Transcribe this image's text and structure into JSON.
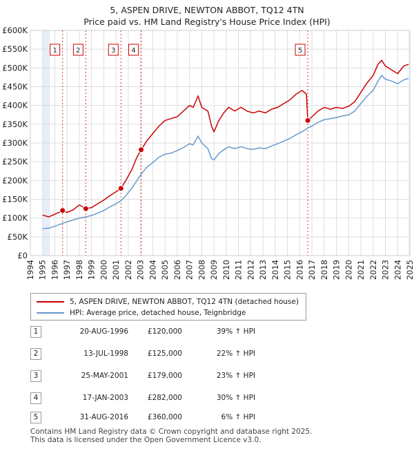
{
  "title_line1": "5, ASPEN DRIVE, NEWTON ABBOT, TQ12 4TN",
  "title_line2": "Price paid vs. HM Land Registry's House Price Index (HPI)",
  "legend": {
    "property": "5, ASPEN DRIVE, NEWTON ABBOT, TQ12 4TN (detached house)",
    "hpi": "HPI: Average price, detached house, Teignbridge"
  },
  "colors": {
    "property": "#cc0000",
    "hpi": "#6699cc",
    "band": "#e8eef8",
    "grid": "#dddddd",
    "sale_marker": "#cc0000"
  },
  "sales": [
    {
      "num": "1",
      "date": "20-AUG-1996",
      "price": "£120,000",
      "hpi": "39% ↑ HPI"
    },
    {
      "num": "2",
      "date": "13-JUL-1998",
      "price": "£125,000",
      "hpi": "22% ↑ HPI"
    },
    {
      "num": "3",
      "date": "25-MAY-2001",
      "price": "£179,000",
      "hpi": "23% ↑ HPI"
    },
    {
      "num": "4",
      "date": "17-JAN-2003",
      "price": "£282,000",
      "hpi": "30% ↑ HPI"
    },
    {
      "num": "5",
      "date": "31-AUG-2016",
      "price": "£360,000",
      "hpi": "6% ↑ HPI"
    }
  ],
  "footer": {
    "line1": "Contains HM Land Registry data © Crown copyright and database right 2025.",
    "line2": "This data is licensed under the Open Government Licence v3.0."
  },
  "chart_data": {
    "type": "line",
    "xlim": [
      1994,
      2025
    ],
    "ylim": [
      0,
      600000
    ],
    "x_ticks": [
      1994,
      1995,
      1996,
      1997,
      1998,
      1999,
      2000,
      2001,
      2002,
      2003,
      2004,
      2005,
      2006,
      2007,
      2008,
      2009,
      2010,
      2011,
      2012,
      2013,
      2014,
      2015,
      2016,
      2017,
      2018,
      2019,
      2020,
      2021,
      2022,
      2023,
      2024,
      2025
    ],
    "y_ticks": [
      {
        "value": 0,
        "label": "£0"
      },
      {
        "value": 50000,
        "label": "£50K"
      },
      {
        "value": 100000,
        "label": "£100K"
      },
      {
        "value": 150000,
        "label": "£150K"
      },
      {
        "value": 200000,
        "label": "£200K"
      },
      {
        "value": 250000,
        "label": "£250K"
      },
      {
        "value": 300000,
        "label": "£300K"
      },
      {
        "value": 350000,
        "label": "£350K"
      },
      {
        "value": 400000,
        "label": "£400K"
      },
      {
        "value": 450000,
        "label": "£450K"
      },
      {
        "value": 500000,
        "label": "£500K"
      },
      {
        "value": 550000,
        "label": "£550K"
      },
      {
        "value": 600000,
        "label": "£600K"
      }
    ],
    "grid": true,
    "shaded_ranges": [
      [
        1995.0,
        1995.6
      ],
      [
        2024.9,
        2025.0
      ]
    ],
    "sale_points": [
      {
        "num": "1",
        "x": 1996.63,
        "y": 120000
      },
      {
        "num": "2",
        "x": 1998.53,
        "y": 125000
      },
      {
        "num": "3",
        "x": 2001.4,
        "y": 179000
      },
      {
        "num": "4",
        "x": 2003.05,
        "y": 282000
      },
      {
        "num": "5",
        "x": 2016.66,
        "y": 360000
      }
    ],
    "series": [
      {
        "name": "5, ASPEN DRIVE, NEWTON ABBOT, TQ12 4TN (detached house)",
        "points": [
          [
            1995.0,
            108000
          ],
          [
            1995.5,
            103000
          ],
          [
            1996.0,
            110000
          ],
          [
            1996.63,
            120000
          ],
          [
            1997.0,
            115000
          ],
          [
            1997.5,
            122000
          ],
          [
            1998.0,
            135000
          ],
          [
            1998.53,
            125000
          ],
          [
            1999.0,
            128000
          ],
          [
            1999.5,
            138000
          ],
          [
            2000.0,
            148000
          ],
          [
            2000.5,
            160000
          ],
          [
            2001.0,
            170000
          ],
          [
            2001.4,
            179000
          ],
          [
            2001.8,
            200000
          ],
          [
            2002.3,
            230000
          ],
          [
            2002.7,
            262000
          ],
          [
            2003.05,
            282000
          ],
          [
            2003.5,
            305000
          ],
          [
            2004.0,
            325000
          ],
          [
            2004.5,
            345000
          ],
          [
            2005.0,
            360000
          ],
          [
            2005.5,
            365000
          ],
          [
            2006.0,
            370000
          ],
          [
            2006.5,
            385000
          ],
          [
            2007.0,
            400000
          ],
          [
            2007.3,
            395000
          ],
          [
            2007.7,
            425000
          ],
          [
            2008.0,
            395000
          ],
          [
            2008.5,
            385000
          ],
          [
            2008.8,
            345000
          ],
          [
            2009.0,
            330000
          ],
          [
            2009.4,
            360000
          ],
          [
            2009.8,
            380000
          ],
          [
            2010.2,
            395000
          ],
          [
            2010.7,
            385000
          ],
          [
            2011.2,
            395000
          ],
          [
            2011.7,
            385000
          ],
          [
            2012.2,
            380000
          ],
          [
            2012.7,
            385000
          ],
          [
            2013.2,
            380000
          ],
          [
            2013.7,
            390000
          ],
          [
            2014.2,
            395000
          ],
          [
            2014.7,
            405000
          ],
          [
            2015.2,
            415000
          ],
          [
            2015.7,
            430000
          ],
          [
            2016.2,
            440000
          ],
          [
            2016.55,
            430000
          ],
          [
            2016.66,
            360000
          ],
          [
            2017.0,
            370000
          ],
          [
            2017.5,
            385000
          ],
          [
            2018.0,
            395000
          ],
          [
            2018.5,
            390000
          ],
          [
            2019.0,
            395000
          ],
          [
            2019.5,
            392000
          ],
          [
            2020.0,
            398000
          ],
          [
            2020.5,
            410000
          ],
          [
            2021.0,
            435000
          ],
          [
            2021.5,
            460000
          ],
          [
            2022.0,
            480000
          ],
          [
            2022.4,
            510000
          ],
          [
            2022.7,
            520000
          ],
          [
            2023.0,
            505000
          ],
          [
            2023.5,
            495000
          ],
          [
            2024.0,
            485000
          ],
          [
            2024.5,
            505000
          ],
          [
            2024.9,
            510000
          ]
        ]
      },
      {
        "name": "HPI: Average price, detached house, Teignbridge",
        "points": [
          [
            1995.0,
            72000
          ],
          [
            1995.5,
            73000
          ],
          [
            1996.0,
            78000
          ],
          [
            1996.63,
            86000
          ],
          [
            1997.0,
            90000
          ],
          [
            1997.5,
            95000
          ],
          [
            1998.0,
            100000
          ],
          [
            1998.53,
            103000
          ],
          [
            1999.0,
            107000
          ],
          [
            1999.5,
            113000
          ],
          [
            2000.0,
            120000
          ],
          [
            2000.5,
            130000
          ],
          [
            2001.0,
            138000
          ],
          [
            2001.4,
            146000
          ],
          [
            2001.8,
            160000
          ],
          [
            2002.3,
            180000
          ],
          [
            2002.7,
            200000
          ],
          [
            2003.05,
            217000
          ],
          [
            2003.5,
            235000
          ],
          [
            2004.0,
            248000
          ],
          [
            2004.5,
            262000
          ],
          [
            2005.0,
            270000
          ],
          [
            2005.5,
            273000
          ],
          [
            2006.0,
            280000
          ],
          [
            2006.5,
            288000
          ],
          [
            2007.0,
            298000
          ],
          [
            2007.3,
            295000
          ],
          [
            2007.7,
            318000
          ],
          [
            2008.0,
            300000
          ],
          [
            2008.5,
            285000
          ],
          [
            2008.8,
            258000
          ],
          [
            2009.0,
            255000
          ],
          [
            2009.4,
            272000
          ],
          [
            2009.8,
            282000
          ],
          [
            2010.2,
            290000
          ],
          [
            2010.7,
            285000
          ],
          [
            2011.2,
            290000
          ],
          [
            2011.7,
            285000
          ],
          [
            2012.2,
            283000
          ],
          [
            2012.7,
            287000
          ],
          [
            2013.2,
            285000
          ],
          [
            2013.7,
            292000
          ],
          [
            2014.2,
            298000
          ],
          [
            2014.7,
            305000
          ],
          [
            2015.2,
            312000
          ],
          [
            2015.7,
            322000
          ],
          [
            2016.2,
            330000
          ],
          [
            2016.66,
            340000
          ],
          [
            2017.0,
            345000
          ],
          [
            2017.5,
            355000
          ],
          [
            2018.0,
            362000
          ],
          [
            2018.5,
            365000
          ],
          [
            2019.0,
            368000
          ],
          [
            2019.5,
            372000
          ],
          [
            2020.0,
            375000
          ],
          [
            2020.5,
            385000
          ],
          [
            2021.0,
            405000
          ],
          [
            2021.5,
            425000
          ],
          [
            2022.0,
            440000
          ],
          [
            2022.4,
            465000
          ],
          [
            2022.7,
            480000
          ],
          [
            2023.0,
            470000
          ],
          [
            2023.5,
            465000
          ],
          [
            2024.0,
            458000
          ],
          [
            2024.5,
            468000
          ],
          [
            2024.9,
            472000
          ]
        ]
      }
    ]
  }
}
